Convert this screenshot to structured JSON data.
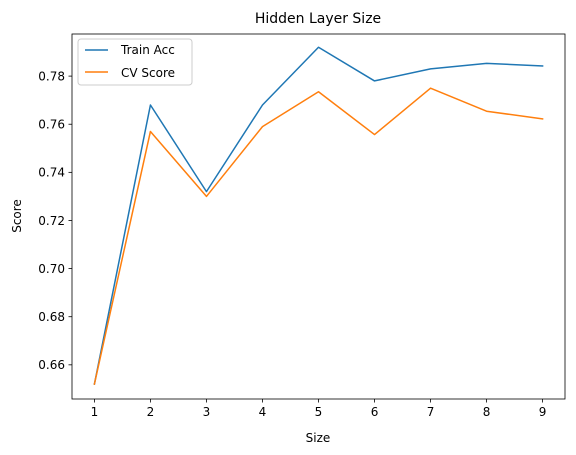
{
  "chart_data": {
    "type": "line",
    "title": "Hidden Layer Size",
    "xlabel": "Size",
    "ylabel": "Score",
    "x": [
      1,
      2,
      3,
      4,
      5,
      6,
      7,
      8,
      9
    ],
    "xticks": [
      "1",
      "2",
      "3",
      "4",
      "5",
      "6",
      "7",
      "8",
      "9"
    ],
    "yticks": [
      "0.66",
      "0.68",
      "0.70",
      "0.72",
      "0.74",
      "0.76",
      "0.78"
    ],
    "xlim": [
      0.6,
      9.4
    ],
    "ylim": [
      0.6458,
      0.7975
    ],
    "grid": false,
    "legend_position": "upper-left",
    "series": [
      {
        "name": "Train Acc",
        "color": "#1f77b4",
        "values": [
          0.652,
          0.768,
          0.732,
          0.768,
          0.792,
          0.778,
          0.783,
          0.7853,
          0.7842
        ]
      },
      {
        "name": "CV Score",
        "color": "#ff7f0e",
        "values": [
          0.652,
          0.757,
          0.73,
          0.759,
          0.7735,
          0.7557,
          0.775,
          0.7654,
          0.7622
        ]
      }
    ]
  }
}
